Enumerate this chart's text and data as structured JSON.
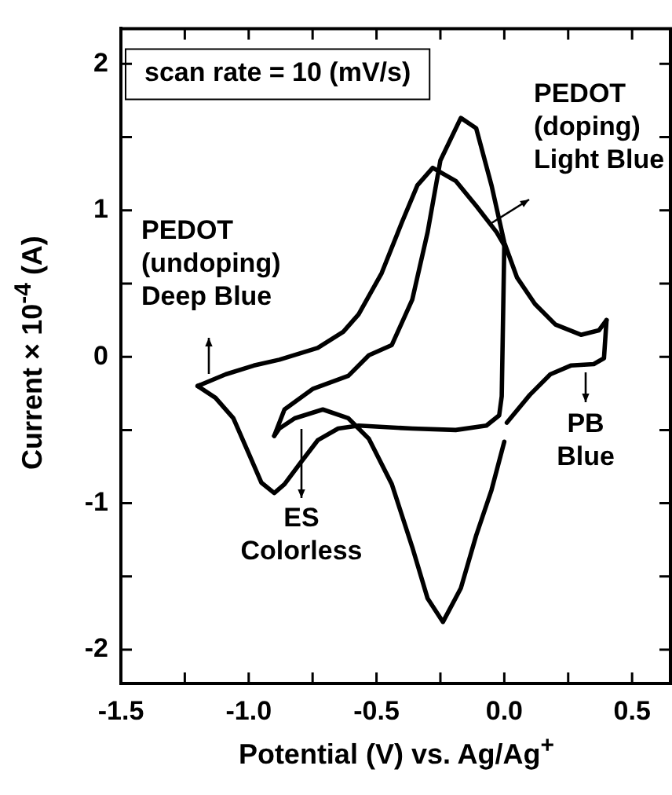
{
  "chart_data": {
    "type": "line",
    "xlabel": "Potential (V) vs. Ag/Ag$^{+}$",
    "ylabel": "Current × 10$^{-4}$ (A)",
    "xlim": [
      -1.5,
      0.65
    ],
    "ylim": [
      -2.23,
      2.24
    ],
    "xticks": [
      {
        "value": -1.5,
        "label": "-1.5"
      },
      {
        "value": -1.25,
        "label": null
      },
      {
        "value": -1.0,
        "label": "-1.0"
      },
      {
        "value": -0.75,
        "label": null
      },
      {
        "value": -0.5,
        "label": "-0.5"
      },
      {
        "value": -0.25,
        "label": null
      },
      {
        "value": 0,
        "label": "0.0"
      },
      {
        "value": 0.25,
        "label": null
      },
      {
        "value": 0.5,
        "label": "0.5"
      }
    ],
    "yticks": [
      -2,
      {
        "value": -1.5,
        "label": null
      },
      -1,
      {
        "value": -0.5,
        "label": null
      },
      0,
      {
        "value": 0.5,
        "label": null
      },
      1,
      {
        "value": 1.5,
        "label": null
      },
      2
    ],
    "grid": false,
    "legend": false,
    "series": [
      {
        "color": "#000000",
        "x": [
          -1.2,
          -1.09,
          -0.98,
          -0.88,
          -0.73,
          -0.63,
          -0.57,
          -0.48,
          -0.4,
          -0.34,
          -0.28,
          -0.19,
          -0.11,
          -0.03,
          0.0
        ],
        "values": [
          -0.2,
          -0.12,
          -0.06,
          -0.02,
          0.06,
          0.17,
          0.29,
          0.57,
          0.92,
          1.17,
          1.29,
          1.2,
          1.03,
          0.85,
          0.76
        ]
      },
      {
        "color": "#000000",
        "x": [
          0.0,
          -0.01,
          -0.02,
          -0.07,
          -0.19,
          -0.36,
          -0.57,
          -0.65,
          -0.73,
          -0.8,
          -0.86,
          -0.9,
          -0.95,
          -1.0,
          -1.06,
          -1.13,
          -1.2
        ],
        "values": [
          0.76,
          -0.27,
          -0.4,
          -0.47,
          -0.5,
          -0.49,
          -0.47,
          -0.49,
          -0.57,
          -0.73,
          -0.87,
          -0.93,
          -0.86,
          -0.66,
          -0.42,
          -0.28,
          -0.2
        ]
      },
      {
        "color": "#000000",
        "x": [
          0.4,
          0.39,
          0.35,
          0.26,
          0.18,
          0.1,
          0.01,
          0.005,
          0.0,
          -0.05,
          -0.11,
          -0.17,
          -0.24,
          -0.3,
          -0.36,
          -0.44,
          -0.53,
          -0.61,
          -0.71,
          -0.82,
          -0.88,
          -0.9
        ],
        "values": [
          0.25,
          -0.01,
          -0.05,
          -0.06,
          -0.12,
          -0.26,
          -0.45,
          null,
          -0.58,
          -0.91,
          -1.22,
          -1.58,
          -1.81,
          -1.65,
          -1.3,
          -0.87,
          -0.56,
          -0.42,
          -0.36,
          -0.42,
          -0.49,
          -0.54
        ]
      },
      {
        "color": "#000000",
        "x": [
          -0.9,
          -0.86,
          -0.75,
          -0.61,
          -0.53,
          -0.44,
          -0.36,
          -0.3,
          -0.25,
          -0.17,
          -0.11,
          -0.05,
          0.0,
          0.05,
          0.12,
          0.2,
          0.3,
          0.37,
          0.4
        ],
        "values": [
          -0.54,
          -0.36,
          -0.22,
          -0.13,
          0.01,
          0.08,
          0.39,
          0.85,
          1.34,
          1.63,
          1.56,
          1.17,
          0.78,
          0.54,
          0.36,
          0.22,
          0.15,
          0.18,
          0.25
        ]
      }
    ],
    "annotations": [
      "scan rate = 10 (mV/s)",
      "PEDOT\n(doping)\nLight Blue",
      "PEDOT\n(undoping)\nDeep Blue",
      "ES\nColorless",
      "PB\nBlue"
    ]
  }
}
